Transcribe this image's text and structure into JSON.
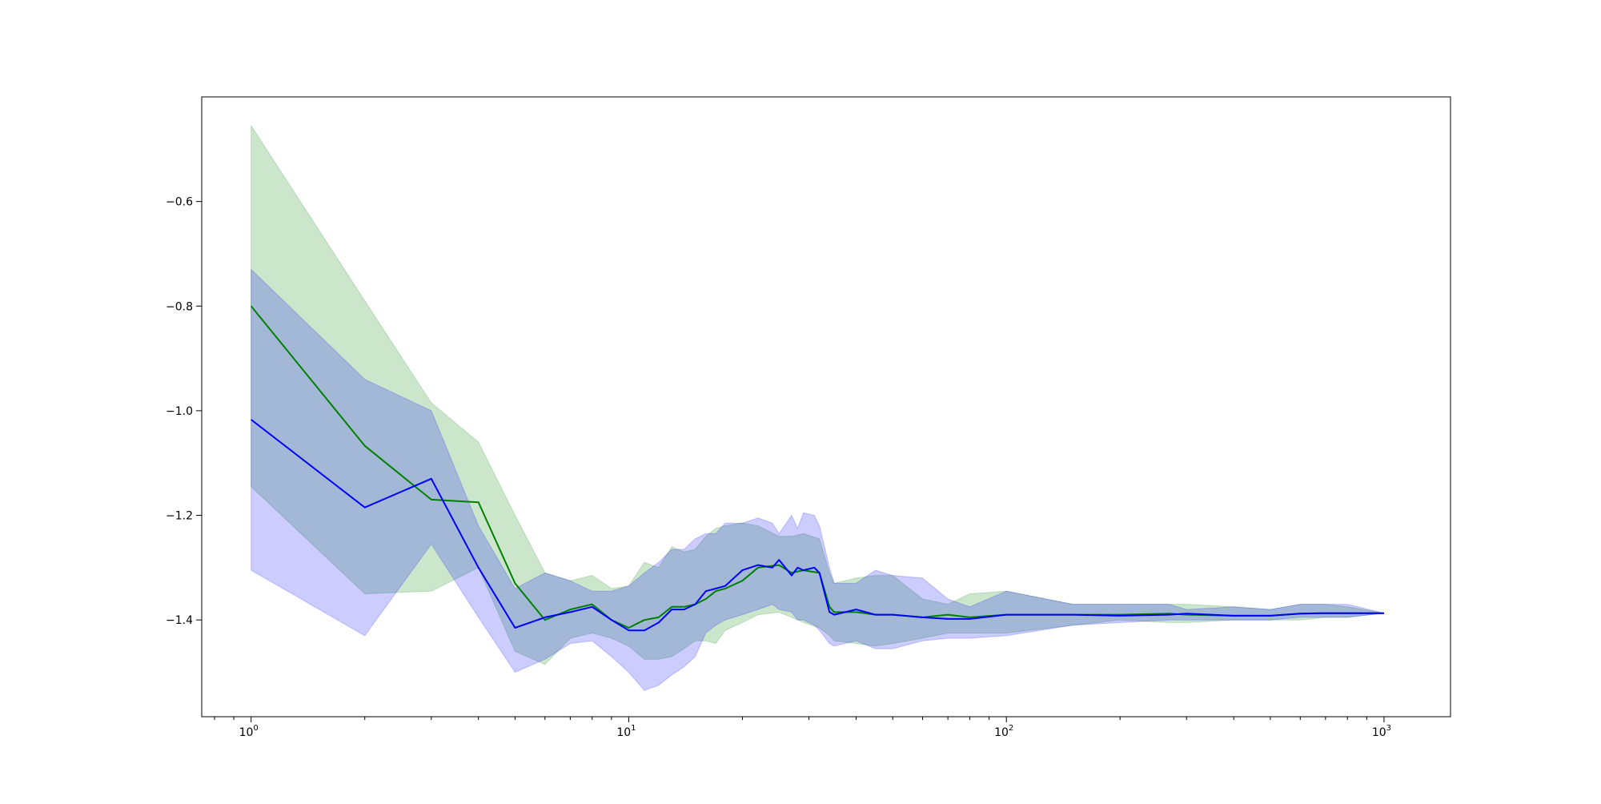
{
  "chart_data": {
    "type": "line",
    "title": "",
    "xlabel": "",
    "ylabel": "",
    "x_scale": "log",
    "xlim": [
      0.74,
      1500
    ],
    "ylim": [
      -1.585,
      -0.4
    ],
    "grid": false,
    "legend": "none",
    "x_ticks": [
      {
        "value": 1,
        "base": "10",
        "exp": "0"
      },
      {
        "value": 10,
        "base": "10",
        "exp": "1"
      },
      {
        "value": 100,
        "base": "10",
        "exp": "2"
      },
      {
        "value": 1000,
        "base": "10",
        "exp": "3"
      }
    ],
    "y_ticks": [
      {
        "value": -0.6,
        "label": "−0.6"
      },
      {
        "value": -0.8,
        "label": "−0.8"
      },
      {
        "value": -1.0,
        "label": "−1.0"
      },
      {
        "value": -1.2,
        "label": "−1.2"
      },
      {
        "value": -1.4,
        "label": "−1.4"
      }
    ],
    "series": [
      {
        "color": "#008000",
        "band_color": "#008000",
        "band_opacity": 0.2,
        "x": [
          1,
          2,
          3,
          4,
          5,
          6,
          7,
          8,
          9,
          10,
          11,
          12,
          13,
          14,
          15,
          16,
          17,
          18,
          20,
          22,
          25,
          27,
          29,
          32,
          34,
          35,
          40,
          45,
          50,
          60,
          70,
          80,
          100,
          150,
          200,
          270,
          300,
          400,
          500,
          600,
          700,
          800,
          1000
        ],
        "y": [
          -0.8,
          -1.067,
          -1.17,
          -1.175,
          -1.33,
          -1.4,
          -1.38,
          -1.37,
          -1.4,
          -1.415,
          -1.4,
          -1.395,
          -1.375,
          -1.375,
          -1.37,
          -1.36,
          -1.345,
          -1.34,
          -1.325,
          -1.3,
          -1.295,
          -1.31,
          -1.305,
          -1.31,
          -1.375,
          -1.385,
          -1.385,
          -1.39,
          -1.39,
          -1.395,
          -1.39,
          -1.395,
          -1.39,
          -1.39,
          -1.39,
          -1.388,
          -1.39,
          -1.392,
          -1.392,
          -1.388,
          -1.387,
          -1.387,
          -1.387
        ],
        "upper": [
          -0.455,
          -0.79,
          -0.985,
          -1.06,
          -1.2,
          -1.31,
          -1.325,
          -1.315,
          -1.34,
          -1.335,
          -1.29,
          -1.3,
          -1.26,
          -1.27,
          -1.265,
          -1.24,
          -1.225,
          -1.22,
          -1.215,
          -1.22,
          -1.24,
          -1.24,
          -1.235,
          -1.245,
          -1.31,
          -1.33,
          -1.32,
          -1.315,
          -1.315,
          -1.36,
          -1.37,
          -1.35,
          -1.345,
          -1.37,
          -1.37,
          -1.37,
          -1.37,
          -1.375,
          -1.38,
          -1.37,
          -1.37,
          -1.375,
          -1.387
        ],
        "lower": [
          -1.145,
          -1.35,
          -1.345,
          -1.3,
          -1.46,
          -1.485,
          -1.435,
          -1.425,
          -1.435,
          -1.45,
          -1.475,
          -1.475,
          -1.47,
          -1.455,
          -1.44,
          -1.44,
          -1.445,
          -1.42,
          -1.405,
          -1.39,
          -1.385,
          -1.395,
          -1.405,
          -1.415,
          -1.43,
          -1.44,
          -1.445,
          -1.45,
          -1.445,
          -1.435,
          -1.425,
          -1.425,
          -1.425,
          -1.41,
          -1.4,
          -1.405,
          -1.405,
          -1.4,
          -1.4,
          -1.4,
          -1.395,
          -1.395,
          -1.387
        ]
      },
      {
        "color": "#0000ff",
        "band_color": "#0000ff",
        "band_opacity": 0.2,
        "x": [
          1,
          2,
          3,
          4,
          5,
          6,
          7,
          8,
          9,
          10,
          11,
          12,
          13,
          14,
          15,
          16,
          17,
          18,
          20,
          22,
          24,
          25,
          27,
          28,
          29,
          31,
          32,
          34,
          35,
          40,
          45,
          50,
          60,
          70,
          80,
          100,
          150,
          200,
          270,
          300,
          400,
          500,
          600,
          700,
          800,
          1000
        ],
        "y": [
          -1.017,
          -1.185,
          -1.13,
          -1.3,
          -1.415,
          -1.395,
          -1.385,
          -1.375,
          -1.4,
          -1.42,
          -1.42,
          -1.405,
          -1.38,
          -1.38,
          -1.37,
          -1.345,
          -1.34,
          -1.335,
          -1.305,
          -1.295,
          -1.3,
          -1.285,
          -1.315,
          -1.3,
          -1.305,
          -1.3,
          -1.31,
          -1.385,
          -1.39,
          -1.38,
          -1.39,
          -1.39,
          -1.395,
          -1.398,
          -1.398,
          -1.39,
          -1.39,
          -1.392,
          -1.39,
          -1.388,
          -1.392,
          -1.392,
          -1.388,
          -1.387,
          -1.387,
          -1.387
        ],
        "upper": [
          -0.73,
          -0.94,
          -1.0,
          -1.22,
          -1.34,
          -1.31,
          -1.325,
          -1.345,
          -1.345,
          -1.335,
          -1.31,
          -1.29,
          -1.265,
          -1.265,
          -1.245,
          -1.235,
          -1.235,
          -1.215,
          -1.215,
          -1.205,
          -1.215,
          -1.235,
          -1.2,
          -1.225,
          -1.195,
          -1.2,
          -1.22,
          -1.3,
          -1.33,
          -1.33,
          -1.305,
          -1.315,
          -1.32,
          -1.36,
          -1.375,
          -1.345,
          -1.37,
          -1.37,
          -1.37,
          -1.38,
          -1.375,
          -1.38,
          -1.37,
          -1.37,
          -1.37,
          -1.387
        ],
        "lower": [
          -1.305,
          -1.43,
          -1.255,
          -1.395,
          -1.5,
          -1.475,
          -1.445,
          -1.44,
          -1.47,
          -1.5,
          -1.535,
          -1.525,
          -1.505,
          -1.49,
          -1.47,
          -1.425,
          -1.41,
          -1.4,
          -1.39,
          -1.38,
          -1.37,
          -1.38,
          -1.385,
          -1.4,
          -1.4,
          -1.41,
          -1.42,
          -1.445,
          -1.45,
          -1.44,
          -1.455,
          -1.455,
          -1.44,
          -1.435,
          -1.435,
          -1.43,
          -1.41,
          -1.405,
          -1.4,
          -1.4,
          -1.4,
          -1.4,
          -1.395,
          -1.395,
          -1.395,
          -1.387
        ]
      }
    ]
  }
}
